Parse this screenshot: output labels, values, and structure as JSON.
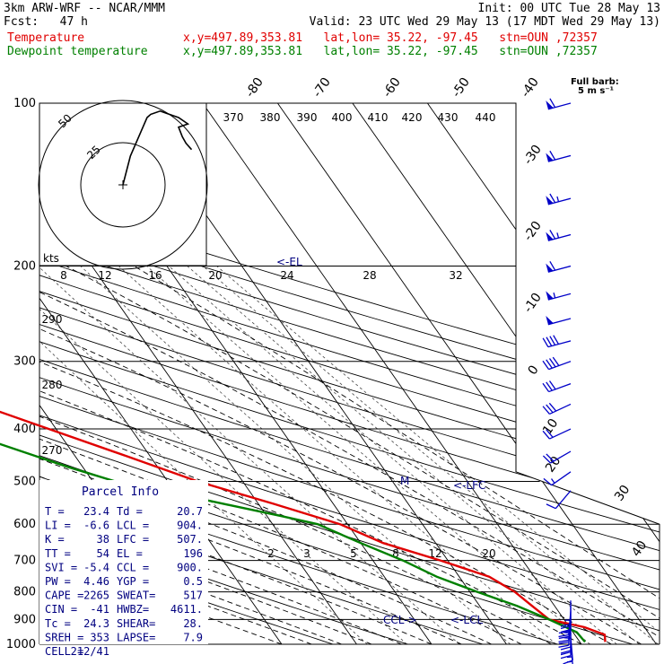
{
  "header": {
    "model": "3km ARW-WRF -- NCAR/MMM",
    "init": "Init: 00 UTC Tue 28 May 13",
    "fcst": "Fcst:   47 h",
    "valid": "Valid: 23 UTC Wed 29 May 13 (17 MDT Wed 29 May 13)",
    "temp_label": "Temperature",
    "temp_loc": "x,y=497.89,353.81   lat,lon= 35.22, -97.45   stn=OUN ,72357",
    "dew_label": "Dewpoint temperature",
    "dew_loc": "x,y=497.89,353.81   lat,lon= 35.22, -97.45   stn=OUN ,72357"
  },
  "barb_key": "Full barb:\n5 m s⁻¹",
  "hodograph": {
    "ring_labels": [
      "25",
      "50"
    ],
    "kts_label": "kts",
    "path_uv": [
      [
        0,
        0
      ],
      [
        4,
        18
      ],
      [
        10,
        34
      ],
      [
        13,
        42
      ],
      [
        15,
        44
      ],
      [
        20,
        46
      ],
      [
        25,
        44
      ],
      [
        30,
        42
      ],
      [
        35,
        38
      ],
      [
        30,
        36
      ],
      [
        32,
        30
      ],
      [
        34,
        26
      ],
      [
        37,
        22
      ]
    ]
  },
  "parcel_info": {
    "title": "Parcel Info",
    "rows": [
      [
        "T  =",
        "23.4",
        "Td =",
        "20.7"
      ],
      [
        "LI =",
        "-6.6",
        "LCL =",
        "904."
      ],
      [
        "K  =",
        "38",
        "LFC =",
        "507."
      ],
      [
        "TT =",
        "54",
        "EL =",
        "196"
      ],
      [
        "SVI =",
        "-5.4",
        "CCL =",
        "900."
      ],
      [
        "PW =",
        "4.46",
        "YGP =",
        "0.5"
      ],
      [
        "CAPE =",
        "2265",
        "SWEAT=",
        "517"
      ],
      [
        "CIN =",
        "-41",
        "HWBZ=",
        "4611."
      ],
      [
        "Tc =",
        "24.3",
        "SHEAR=",
        "28."
      ],
      [
        "SREH =",
        "353",
        "LAPSE=",
        "7.9"
      ],
      [
        "CELL =",
        "212/41",
        "",
        ""
      ]
    ]
  },
  "chart_data": {
    "type": "line",
    "title": "",
    "pressure_levels": [
      100,
      200,
      300,
      400,
      500,
      600,
      700,
      800,
      900,
      1000
    ],
    "temp_isotherm_labels": [
      "-80",
      "-70",
      "-60",
      "-50",
      "-40",
      "-30",
      "-20",
      "-10",
      "0",
      "10",
      "20",
      "30",
      "40"
    ],
    "theta_labels_top": [
      "370",
      "380",
      "390",
      "400",
      "410",
      "420",
      "430",
      "440"
    ],
    "theta_labels_left": [
      "290",
      "280",
      "270"
    ],
    "mixing_ratio_labels_top": [
      "8",
      "12",
      "16",
      "20",
      "24",
      "28",
      "32"
    ],
    "mixing_ratio_labels_low": [
      "2",
      "3",
      "5",
      "8",
      "12",
      "20"
    ],
    "level_markers": [
      {
        "label": "<-EL",
        "p": 196
      },
      {
        "label": "M",
        "p": 505
      },
      {
        "label": "<-LFC",
        "p": 507
      },
      {
        "label": "CCL->",
        "p": 900
      },
      {
        "label": "<-LCL",
        "p": 904
      }
    ],
    "series": [
      {
        "name": "Temperature",
        "color": "#e00000",
        "points": [
          [
            100,
            -62
          ],
          [
            150,
            -59
          ],
          [
            200,
            -62
          ],
          [
            225,
            -63
          ],
          [
            250,
            -58
          ],
          [
            300,
            -49
          ],
          [
            350,
            -40
          ],
          [
            400,
            -31
          ],
          [
            450,
            -23
          ],
          [
            500,
            -16
          ],
          [
            550,
            -8
          ],
          [
            600,
            -1
          ],
          [
            650,
            3
          ],
          [
            700,
            9
          ],
          [
            750,
            14
          ],
          [
            800,
            16
          ],
          [
            850,
            17
          ],
          [
            900,
            18
          ],
          [
            930,
            22
          ],
          [
            960,
            24
          ],
          [
            990,
            23.4
          ]
        ]
      },
      {
        "name": "Dewpoint temperature",
        "color": "#008000",
        "points": [
          [
            100,
            -85
          ],
          [
            120,
            -84
          ],
          [
            150,
            -83
          ],
          [
            190,
            -83
          ],
          [
            210,
            -79
          ],
          [
            240,
            -70
          ],
          [
            270,
            -63
          ],
          [
            300,
            -58
          ],
          [
            330,
            -55
          ],
          [
            370,
            -48
          ],
          [
            420,
            -40
          ],
          [
            470,
            -32
          ],
          [
            500,
            -27
          ],
          [
            540,
            -17
          ],
          [
            580,
            -8
          ],
          [
            600,
            -4
          ],
          [
            650,
            0
          ],
          [
            700,
            4
          ],
          [
            750,
            7
          ],
          [
            800,
            11
          ],
          [
            850,
            15
          ],
          [
            900,
            18
          ],
          [
            950,
            20.5
          ],
          [
            990,
            20.7
          ]
        ]
      }
    ],
    "wind_barbs": [
      {
        "p": 100,
        "ff": 30,
        "dd": 255
      },
      {
        "p": 125,
        "ff": 32,
        "dd": 255
      },
      {
        "p": 150,
        "ff": 33,
        "dd": 255
      },
      {
        "p": 175,
        "ff": 33,
        "dd": 255
      },
      {
        "p": 200,
        "ff": 32,
        "dd": 255
      },
      {
        "p": 225,
        "ff": 28,
        "dd": 255
      },
      {
        "p": 250,
        "ff": 25,
        "dd": 255
      },
      {
        "p": 275,
        "ff": 22,
        "dd": 255
      },
      {
        "p": 300,
        "ff": 20,
        "dd": 250
      },
      {
        "p": 330,
        "ff": 17,
        "dd": 250
      },
      {
        "p": 360,
        "ff": 15,
        "dd": 245
      },
      {
        "p": 400,
        "ff": 12,
        "dd": 245
      },
      {
        "p": 440,
        "ff": 10,
        "dd": 240
      },
      {
        "p": 480,
        "ff": 8,
        "dd": 235
      },
      {
        "p": 520,
        "ff": 5,
        "dd": 220
      },
      {
        "p": 830,
        "ff": 8,
        "dd": 180
      },
      {
        "p": 850,
        "ff": 10,
        "dd": 180
      },
      {
        "p": 870,
        "ff": 12,
        "dd": 185
      },
      {
        "p": 890,
        "ff": 13,
        "dd": 185
      },
      {
        "p": 910,
        "ff": 13,
        "dd": 185
      },
      {
        "p": 930,
        "ff": 12,
        "dd": 180
      },
      {
        "p": 950,
        "ff": 10,
        "dd": 180
      },
      {
        "p": 970,
        "ff": 9,
        "dd": 175
      },
      {
        "p": 990,
        "ff": 8,
        "dd": 175
      }
    ]
  },
  "colors": {
    "temperature": "#e00000",
    "dewpoint": "#008000",
    "text_blue": "#000080",
    "barb_blue": "#0000c8"
  }
}
